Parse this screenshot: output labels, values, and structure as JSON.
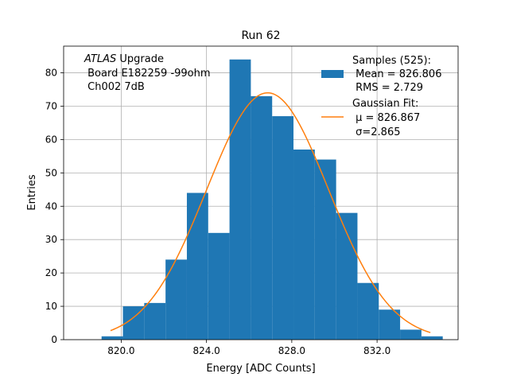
{
  "chart_data": {
    "type": "bar",
    "title": "Run 62",
    "xlabel": "Energy [ADC Counts]",
    "ylabel": "Entries",
    "xlim": [
      817.3,
      835.8
    ],
    "ylim": [
      0,
      88
    ],
    "grid": true,
    "legend_placement": "top-right",
    "x_ticks": [
      {
        "value": 820.0,
        "label": "820.0"
      },
      {
        "value": 824.0,
        "label": "824.0"
      },
      {
        "value": 828.0,
        "label": "828.0"
      },
      {
        "value": 832.0,
        "label": "832.0"
      }
    ],
    "y_ticks": [
      {
        "value": 0,
        "label": "0"
      },
      {
        "value": 10,
        "label": "10"
      },
      {
        "value": 20,
        "label": "20"
      },
      {
        "value": 30,
        "label": "30"
      },
      {
        "value": 40,
        "label": "40"
      },
      {
        "value": 50,
        "label": "50"
      },
      {
        "value": 60,
        "label": "60"
      },
      {
        "value": 70,
        "label": "70"
      },
      {
        "value": 80,
        "label": "80"
      }
    ],
    "histogram": {
      "bin_edges": [
        819.08,
        820.08,
        821.08,
        822.08,
        823.08,
        824.08,
        825.08,
        826.08,
        827.08,
        828.08,
        829.08,
        830.08,
        831.08,
        832.08,
        833.08,
        834.08,
        835.08
      ],
      "counts": [
        1,
        10,
        11,
        24,
        44,
        32,
        84,
        73,
        67,
        57,
        54,
        38,
        17,
        9,
        3,
        1
      ],
      "color": "#1f77b4"
    },
    "fit_curve": {
      "mu": 826.867,
      "sigma": 2.865,
      "amplitude": 74,
      "x_range": [
        819.5,
        834.5
      ],
      "color": "#ff7f0e"
    },
    "annotation": {
      "line1_italic": "ATLAS",
      "line1_rest": " Upgrade",
      "line2": " Board E182259 -99ohm",
      "line3": " Ch002 7dB"
    },
    "legend": [
      {
        "kind": "patch",
        "color": "#1f77b4",
        "lines": [
          "Samples (525):",
          " Mean = 826.806",
          " RMS = 2.729"
        ]
      },
      {
        "kind": "line",
        "color": "#ff7f0e",
        "lines": [
          "Gaussian Fit:",
          " μ = 826.867",
          " σ=2.865"
        ]
      }
    ]
  }
}
